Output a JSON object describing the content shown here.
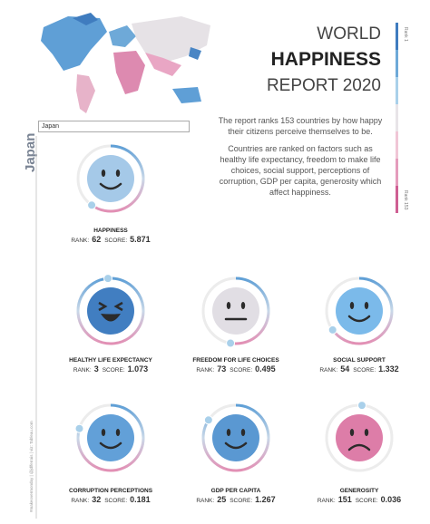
{
  "header": {
    "line1": "WORLD",
    "line2": "HAPPINESS",
    "line3": "REPORT 2020"
  },
  "description": [
    "The report ranks 153 countries by how happy their citizens perceive themselves to be.",
    "Countries are ranked on factors such as healthy life expectancy, freedom to make life choices, social support, perceptions of corruption, GDP per capita, generosity which affect happiness."
  ],
  "legend": {
    "top": "Rank 1",
    "bottom": "Rank 153"
  },
  "search": "Japan",
  "country": "Japan",
  "credit": "#makeovermonday | @jdlferrais | viz: Tableau.com",
  "rank_range": [
    1,
    153
  ],
  "labels": {
    "rank": "RANK:",
    "score": "SCORE:"
  },
  "metrics": [
    {
      "name": "HAPPINESS",
      "rank": 62,
      "score": 5.871
    },
    {
      "name": "HEALTHY LIFE EXPECTANCY",
      "rank": 3,
      "score": 1.073
    },
    {
      "name": "FREEDOM FOR LIFE CHOICES",
      "rank": 73,
      "score": 0.495
    },
    {
      "name": "SOCIAL SUPPORT",
      "rank": 54,
      "score": 1.332
    },
    {
      "name": "CORRUPTION PERCEPTIONS",
      "rank": 32,
      "score": 0.181
    },
    {
      "name": "GDP PER CAPITA",
      "rank": 25,
      "score": 1.267
    },
    {
      "name": "GENEROSITY",
      "rank": 151,
      "score": 0.036
    }
  ]
}
